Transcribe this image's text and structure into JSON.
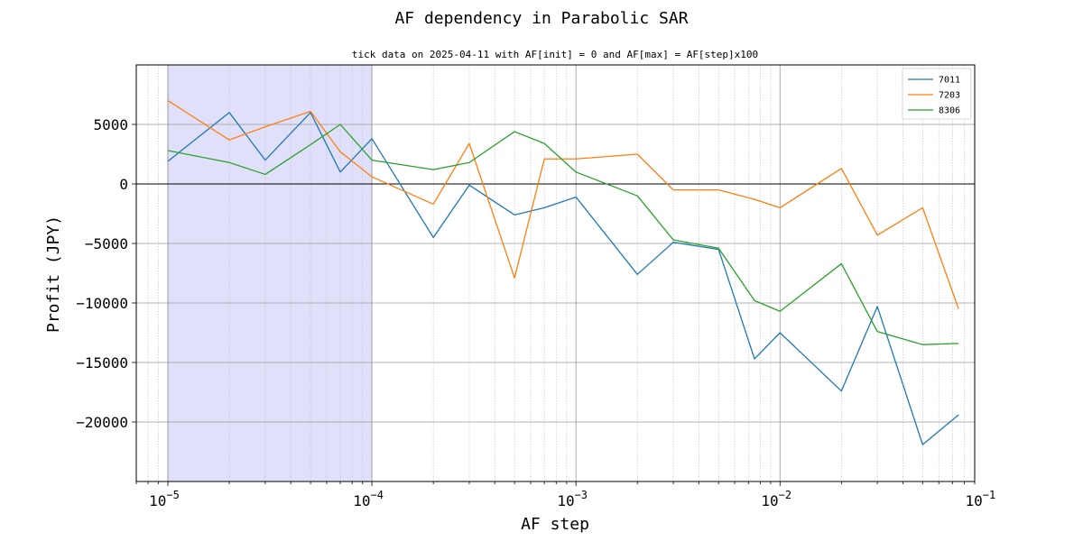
{
  "chart_data": {
    "type": "line",
    "title": "AF dependency in Parabolic SAR",
    "subtitle": "tick data on 2025-04-11 with AF[init] = 0 and AF[max] = AF[step]x100",
    "xlabel": "AF step",
    "ylabel": "Profit (JPY)",
    "x_scale": "log",
    "xlim": [
      7e-06,
      0.09
    ],
    "ylim": [
      -25000,
      10000
    ],
    "x_ticks": [
      1e-05,
      0.0001,
      0.001,
      0.01,
      0.1
    ],
    "x_tick_labels": [
      {
        "base": "10",
        "exp": "−5"
      },
      {
        "base": "10",
        "exp": "−4"
      },
      {
        "base": "10",
        "exp": "−3"
      },
      {
        "base": "10",
        "exp": "−2"
      },
      {
        "base": "10",
        "exp": "−1"
      }
    ],
    "y_ticks": [
      5000,
      0,
      -5000,
      -10000,
      -15000,
      -20000
    ],
    "y_tick_labels": [
      "5000",
      "0",
      "−5000",
      "−10000",
      "−15000",
      "−20000"
    ],
    "grid": true,
    "highlight_span": {
      "x0": 1e-05,
      "x1": 0.0001,
      "color": "#e0e0fb"
    },
    "zero_line": true,
    "legend_position": "top-right",
    "x": [
      1e-05,
      2e-05,
      3e-05,
      5e-05,
      7e-05,
      0.0001,
      0.0002,
      0.0003,
      0.0005,
      0.0007,
      0.001,
      0.002,
      0.003,
      0.005,
      0.0075,
      0.01,
      0.02,
      0.03,
      0.05,
      0.075
    ],
    "series": [
      {
        "name": "7011",
        "color": "#1f77b4",
        "values": [
          1900,
          6000,
          2000,
          6000,
          1000,
          3800,
          -4500,
          -100,
          -2600,
          -2000,
          -1100,
          -7600,
          -4900,
          -5500,
          -14700,
          -12500,
          -17400,
          -10300,
          -21900,
          -19400
        ]
      },
      {
        "name": "7203",
        "color": "#ff7f0e",
        "values": [
          7000,
          3700,
          4800,
          6100,
          2700,
          600,
          -1700,
          3400,
          -7900,
          2100,
          2100,
          2500,
          -500,
          -500,
          -1300,
          -2000,
          1300,
          -4300,
          -2000,
          -10500
        ]
      },
      {
        "name": "8306",
        "color": "#2ca02c",
        "values": [
          2800,
          1800,
          800,
          3300,
          5000,
          2000,
          1200,
          1800,
          4400,
          3400,
          1000,
          -1000,
          -4700,
          -5400,
          -9800,
          -10700,
          -6700,
          -12400,
          -13500,
          -13400
        ]
      }
    ]
  }
}
